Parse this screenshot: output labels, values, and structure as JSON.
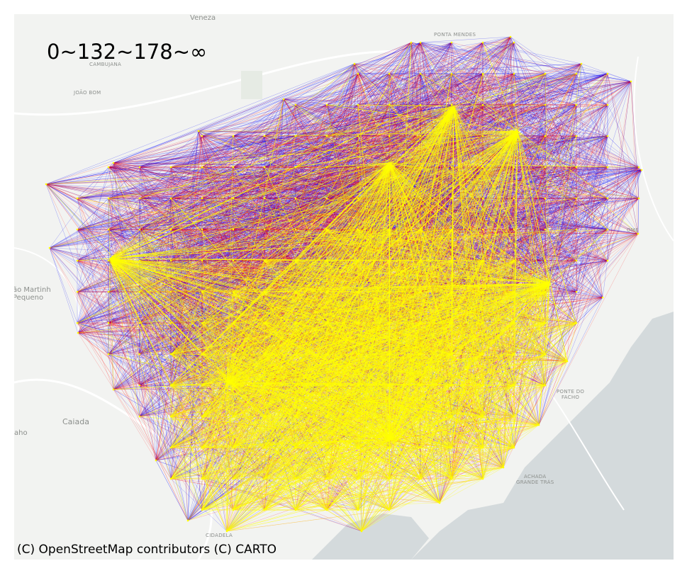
{
  "map": {
    "title": "0~132~178~∞",
    "attribution": "(C) OpenStreetMap contributors (C) CARTO",
    "place_labels": {
      "veneza": "Veneza",
      "ponta_mendes": "PONTA MENDES",
      "cambujana": "CAMBUJANA",
      "joao_bom": "JOÃO BOM",
      "sao_martinho": "ão Martinh\nPequeno",
      "caiada": "Caiada",
      "aho": "aho",
      "ponte_do_facho": "PONTE DO\nFACHO",
      "achada_grande": "ACHADA\nGRANDE TRÁS",
      "cidadela": "CIDADELA",
      "ome": "OME"
    },
    "colors": {
      "background": "#f2f3f1",
      "sea": "#d4dadc",
      "low_band": "#0000ff",
      "mid_band": "#ff0000",
      "high_band": "#ffff00"
    },
    "legend_breaks": [
      "0",
      "132",
      "178",
      "∞"
    ]
  }
}
